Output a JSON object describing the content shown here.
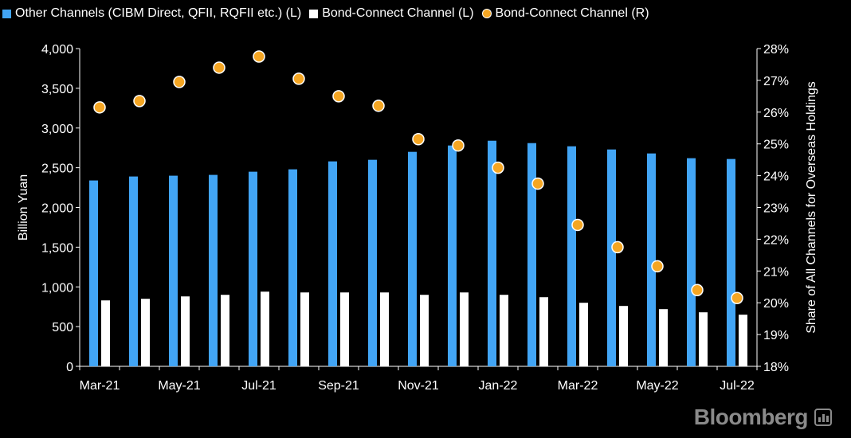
{
  "legend": [
    {
      "label": "Other Channels (CIBM Direct, QFII, RQFII etc.) (L)",
      "color": "#42a5f5",
      "shape": "square"
    },
    {
      "label": "Bond-Connect Channel (L)",
      "color": "#ffffff",
      "shape": "square"
    },
    {
      "label": "Bond-Connect Channel (R)",
      "color": "#f5a623",
      "shape": "circle"
    }
  ],
  "brand": {
    "name": "Bloomberg",
    "icon": "bloomberg-terminal-icon"
  },
  "chart_data": {
    "type": "bar",
    "title": "",
    "xlabel": "",
    "ylabel": "Billion Yuan",
    "y2label": "Share of All Channels for Overseas Holdings",
    "ylim": [
      0,
      4000
    ],
    "y2lim": [
      18,
      28
    ],
    "yticks": [
      "0",
      "500",
      "1,000",
      "1,500",
      "2,000",
      "2,500",
      "3,000",
      "3,500",
      "4,000"
    ],
    "y2ticks": [
      "18%",
      "19%",
      "20%",
      "21%",
      "22%",
      "23%",
      "24%",
      "25%",
      "26%",
      "27%",
      "28%"
    ],
    "categories": [
      "Mar-21",
      "Apr-21",
      "May-21",
      "Jun-21",
      "Jul-21",
      "Aug-21",
      "Sep-21",
      "Oct-21",
      "Nov-21",
      "Dec-21",
      "Jan-22",
      "Feb-22",
      "Mar-22",
      "Apr-22",
      "May-22",
      "Jun-22",
      "Jul-22"
    ],
    "xtick_labels": [
      "Mar-21",
      "May-21",
      "Jul-21",
      "Sep-21",
      "Nov-21",
      "Jan-22",
      "Mar-22",
      "May-22",
      "Jul-22"
    ],
    "grid": false,
    "legend_position": "top",
    "series": [
      {
        "name": "Other Channels (CIBM Direct, QFII, RQFII etc.) (L)",
        "type": "bar",
        "axis": "left",
        "color": "#42a5f5",
        "values": [
          2340,
          2390,
          2400,
          2410,
          2450,
          2480,
          2580,
          2600,
          2700,
          2780,
          2840,
          2810,
          2770,
          2730,
          2680,
          2620,
          2610
        ]
      },
      {
        "name": "Bond-Connect Channel (L)",
        "type": "bar",
        "axis": "left",
        "color": "#ffffff",
        "values": [
          830,
          850,
          880,
          900,
          940,
          930,
          930,
          930,
          900,
          930,
          900,
          870,
          800,
          760,
          720,
          680,
          650
        ]
      },
      {
        "name": "Bond-Connect Channel (R)",
        "type": "scatter",
        "axis": "right",
        "color": "#f5a623",
        "values": [
          26.15,
          26.35,
          26.95,
          27.4,
          27.75,
          27.05,
          26.5,
          26.2,
          25.15,
          24.95,
          24.25,
          23.75,
          22.45,
          21.75,
          21.15,
          20.4,
          20.15
        ]
      }
    ]
  }
}
